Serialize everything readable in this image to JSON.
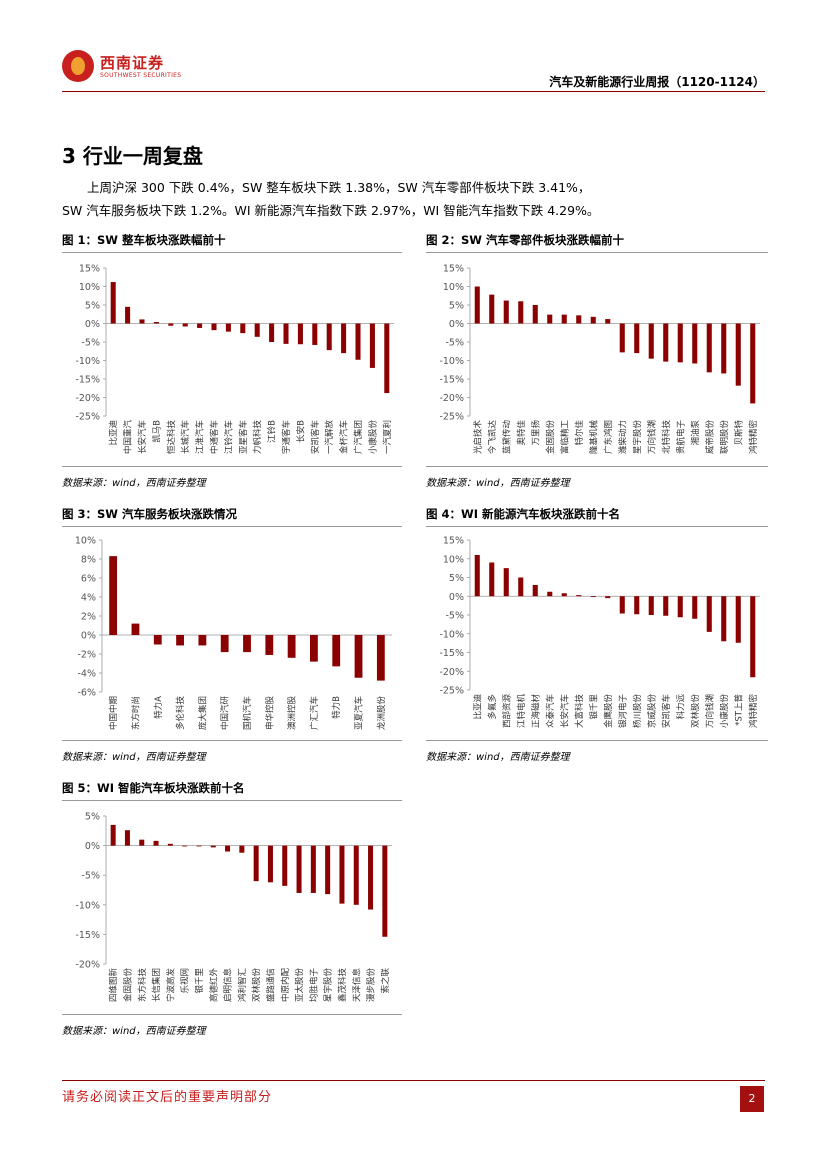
{
  "header": {
    "logo_cn": "西南证券",
    "logo_en": "SOUTHWEST SECURITIES",
    "report_title": "汽车及新能源行业周报（1120-1124）"
  },
  "section": {
    "title": "3 行业一周复盘",
    "paragraph_line1": "上周沪深 300 下跌 0.4%，SW 整车板块下跌 1.38%，SW 汽车零部件板块下跌 3.41%，",
    "paragraph_line2": "SW 汽车服务板块下跌 1.2%。WI 新能源汽车指数下跌 2.97%，WI 智能汽车指数下跌 4.29%。"
  },
  "figures": [
    {
      "title": "图 1：SW 整车板块涨跌幅前十",
      "source": "数据来源：wind，西南证券整理"
    },
    {
      "title": "图 2：SW 汽车零部件板块涨跌幅前十",
      "source": "数据来源：wind，西南证券整理"
    },
    {
      "title": "图 3：SW 汽车服务板块涨跌情况",
      "source": "数据来源：wind，西南证券整理"
    },
    {
      "title": "图 4：WI 新能源汽车板块涨跌前十名",
      "source": "数据来源：wind，西南证券整理"
    },
    {
      "title": "图 5：WI 智能汽车板块涨跌前十名",
      "source": "数据来源：wind，西南证券整理"
    }
  ],
  "chart_data": [
    {
      "type": "bar",
      "title": "图 1：SW 整车板块涨跌幅前十",
      "categories": [
        "比亚迪",
        "中国重汽",
        "长安汽车",
        "凯马B",
        "恒达科技",
        "长城汽车",
        "江淮汽车",
        "中通客车",
        "江铃汽车",
        "亚星客车",
        "力帆科技",
        "江铃B",
        "宇通客车",
        "长安B",
        "安凯客车",
        "一汽解放",
        "金杯汽车",
        "广汽集团",
        "小康股份",
        "一汽夏利"
      ],
      "values": [
        11.2,
        4.5,
        1.1,
        0.4,
        -0.6,
        -0.8,
        -1.2,
        -1.8,
        -2.2,
        -2.6,
        -3.6,
        -5.0,
        -5.5,
        -5.6,
        -5.8,
        -7.2,
        -8.0,
        -9.8,
        -12.0,
        -18.8
      ],
      "ylim": [
        -25,
        15
      ],
      "yticks": [
        "15%",
        "10%",
        "5%",
        "0%",
        "-5%",
        "-10%",
        "-15%",
        "-20%",
        "-25%"
      ],
      "color": "#8b0000"
    },
    {
      "type": "bar",
      "title": "图 2：SW 汽车零部件板块涨跌幅前十",
      "categories": [
        "光启技术",
        "今飞凯达",
        "蓝黛传动",
        "奥特佳",
        "万里扬",
        "金固股份",
        "富临精工",
        "特尔佳",
        "隆基机械",
        "广东鸿图",
        "潍柴动力",
        "星宇股份",
        "万向钱潮",
        "北特科技",
        "贵航电子",
        "湘油泵",
        "威帝股份",
        "联明股份",
        "贝斯特",
        "鸿特精密"
      ],
      "values": [
        10.0,
        7.8,
        6.2,
        6.0,
        5.0,
        2.4,
        2.4,
        2.2,
        1.8,
        1.2,
        -7.8,
        -8.0,
        -9.5,
        -10.3,
        -10.5,
        -10.8,
        -13.2,
        -13.5,
        -16.8,
        -21.6
      ],
      "ylim": [
        -25,
        15
      ],
      "yticks": [
        "15%",
        "10%",
        "5%",
        "0%",
        "-5%",
        "-10%",
        "-15%",
        "-20%",
        "-25%"
      ],
      "color": "#8b0000"
    },
    {
      "type": "bar",
      "title": "图 3：SW 汽车服务板块涨跌情况",
      "categories": [
        "中国中期",
        "东方时尚",
        "特力A",
        "多伦科技",
        "庞大集团",
        "中国汽研",
        "国机汽车",
        "申华控股",
        "澳洲控股",
        "广汇汽车",
        "特力B",
        "亚夏汽车",
        "龙洲股份"
      ],
      "values": [
        8.3,
        1.2,
        -1.0,
        -1.1,
        -1.1,
        -1.8,
        -1.8,
        -2.1,
        -2.4,
        -2.8,
        -3.3,
        -4.5,
        -4.8
      ],
      "ylim": [
        -6,
        10
      ],
      "yticks": [
        "10%",
        "8%",
        "6%",
        "4%",
        "2%",
        "0%",
        "-2%",
        "-4%",
        "-6%"
      ],
      "color": "#8b0000"
    },
    {
      "type": "bar",
      "title": "图 4：WI 新能源汽车板块涨跌前十名",
      "categories": [
        "比亚迪",
        "多氟多",
        "西部资源",
        "江特电机",
        "正海磁材",
        "众泰汽车",
        "长安汽车",
        "大富科技",
        "银千里",
        "金鹰股份",
        "银河电子",
        "杨川股份",
        "京威股份",
        "安凯客车",
        "科力远",
        "双林股份",
        "万向钱潮",
        "小康股份",
        "*ST上普",
        "鸿特精密"
      ],
      "values": [
        11.0,
        9.0,
        7.5,
        5.0,
        3.0,
        1.2,
        0.8,
        0.3,
        0.0,
        -0.5,
        -4.6,
        -4.8,
        -5.0,
        -5.2,
        -5.6,
        -6.0,
        -9.5,
        -12.0,
        -12.4,
        -21.6
      ],
      "ylim": [
        -25,
        15
      ],
      "yticks": [
        "15%",
        "10%",
        "5%",
        "0%",
        "-5%",
        "-10%",
        "-15%",
        "-20%",
        "-25%"
      ],
      "color": "#8b0000"
    },
    {
      "type": "bar",
      "title": "图 5：WI 智能汽车板块涨跌前十名",
      "categories": [
        "四维图新",
        "金固股份",
        "东方科技",
        "长信集团",
        "宁波高发",
        "乐视网",
        "银千里",
        "高德红外",
        "启明信息",
        "鸿利智汇",
        "双林股份",
        "盛路通信",
        "中原内配",
        "亚太股份",
        "均胜电子",
        "星宇股份",
        "鑫茂科技",
        "天泽信息",
        "漫步股份",
        "索之联"
      ],
      "values": [
        3.5,
        2.6,
        1.0,
        0.8,
        0.3,
        0.0,
        0.0,
        -0.3,
        -1.0,
        -1.2,
        -6.0,
        -6.2,
        -6.8,
        -8.0,
        -8.0,
        -8.2,
        -9.8,
        -10.0,
        -10.8,
        -15.4
      ],
      "ylim": [
        -20,
        5
      ],
      "yticks": [
        "5%",
        "0%",
        "-5%",
        "-10%",
        "-15%",
        "-20%"
      ],
      "color": "#8b0000"
    }
  ],
  "footer": {
    "disclaimer": "请务必阅读正文后的重要声明部分",
    "page_number": "2"
  }
}
